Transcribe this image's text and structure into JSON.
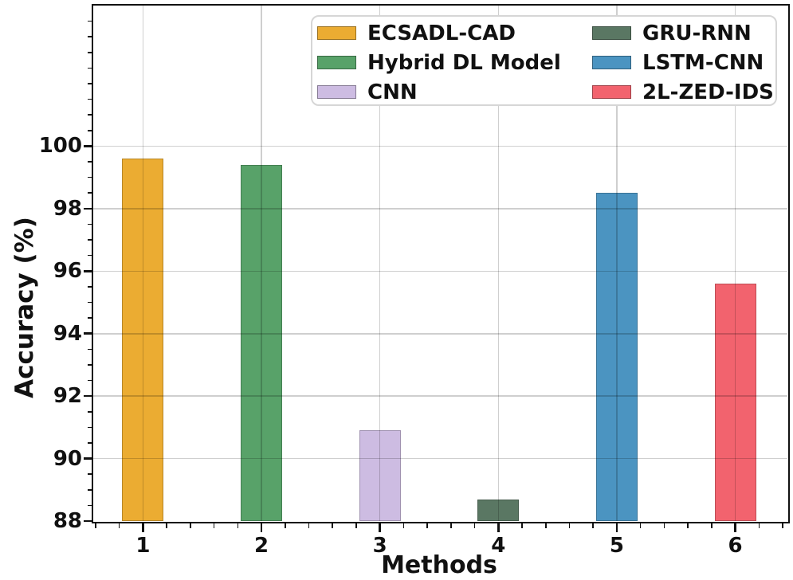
{
  "chart_data": {
    "type": "bar",
    "title": "",
    "xlabel": "Methods",
    "ylabel": "Accuracy (%)",
    "categories": [
      "1",
      "2",
      "3",
      "4",
      "5",
      "6"
    ],
    "series": [
      {
        "name": "ECSADL-CAD",
        "x": 1,
        "value": 99.6,
        "color": "#EBAC32"
      },
      {
        "name": "Hybrid DL Model",
        "x": 2,
        "value": 99.4,
        "color": "#58A269"
      },
      {
        "name": "CNN",
        "x": 3,
        "value": 90.9,
        "color": "#CDBCE2"
      },
      {
        "name": "GRU-RNN",
        "x": 4,
        "value": 88.7,
        "color": "#5A7763"
      },
      {
        "name": "LSTM-CNN",
        "x": 5,
        "value": 98.5,
        "color": "#4B94C1"
      },
      {
        "name": "2L-ZED-IDS",
        "x": 6,
        "value": 95.6,
        "color": "#F2636E"
      }
    ],
    "xlim": [
      0.58,
      6.44
    ],
    "ylim": [
      88,
      104.5
    ],
    "xticks": [
      1,
      2,
      3,
      4,
      5,
      6
    ],
    "yticks": [
      88,
      90,
      92,
      94,
      96,
      98,
      100
    ],
    "x_minor_step": 0.2,
    "y_minor_step": 0.5,
    "grid": true,
    "grid_on_top_of_bars": true,
    "legend_position": "upper center inside axes, 2 columns, 3 rows"
  },
  "style_colors": {
    "background": "#ffffff",
    "axis_and_text": "#111111",
    "gridline": "rgba(0,0,0,0.19)",
    "legend_border": "#d6d6d6"
  }
}
